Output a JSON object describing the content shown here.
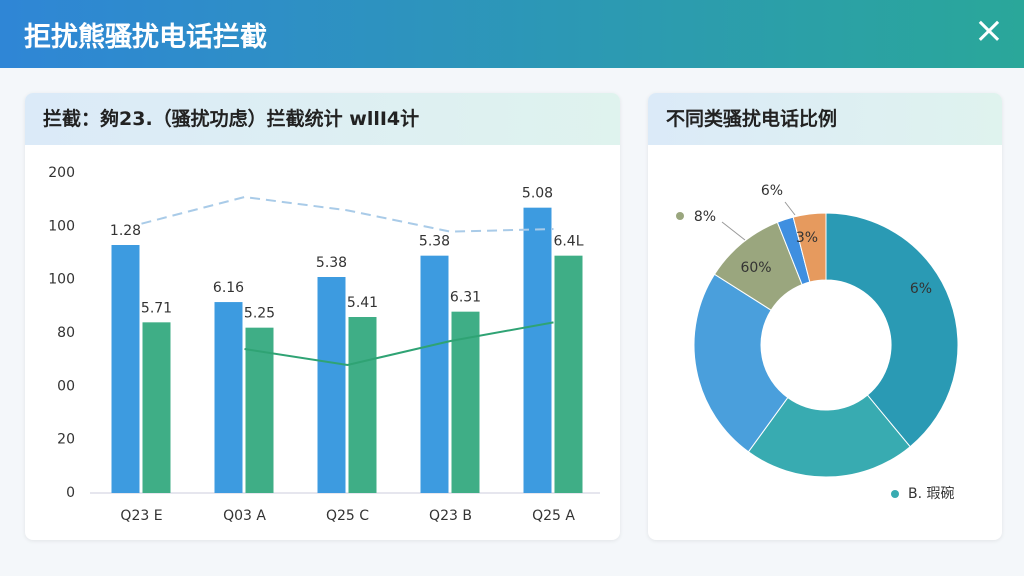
{
  "header": {
    "title": "拒扰熊骚扰电话拦截",
    "close": "×"
  },
  "chart_data": [
    {
      "type": "bar",
      "title": "拦截：夠23.（骚扰功虑）拦截统计 wllI4计",
      "categories": [
        "Q23 E",
        "Q03 A",
        "Q25 C",
        "Q23 B",
        "Q25 A"
      ],
      "series": [
        {
          "color": "#3d9be0",
          "values": [
            93,
            71.6,
            81,
            89,
            107
          ]
        },
        {
          "color": "#3fae86",
          "values": [
            64,
            62,
            66,
            68,
            89
          ]
        }
      ],
      "annotations": [
        [
          "1.28",
          "5.71"
        ],
        [
          "6.16",
          "5.25"
        ],
        [
          "5.38",
          "5.41"
        ],
        [
          "5.38",
          "6.31"
        ],
        [
          "5.08",
          "6.4L"
        ]
      ],
      "lines": [
        {
          "color": "#a9cbe8",
          "dashed": true,
          "values": [
            101,
            111,
            106,
            98,
            99
          ]
        },
        {
          "color": "#2fa374",
          "dashed": false,
          "values": [
            null,
            54,
            48,
            57,
            64
          ]
        }
      ],
      "ylim": [
        0,
        120
      ],
      "yticks": [
        0,
        20,
        {
          "value": 40,
          "label": "00"
        },
        {
          "value": 60,
          "label": "80"
        },
        {
          "value": 80,
          "label": "100"
        },
        100,
        {
          "value": 120,
          "label": "200"
        }
      ]
    },
    {
      "type": "pie",
      "title": "不同类骚扰电话比例",
      "values": [
        39,
        21,
        24,
        10,
        2,
        4
      ],
      "colors": [
        "#2a9ab4",
        "#38abb1",
        "#4a9fdc",
        "#9aa67e",
        "#3f8fe0",
        "#e69a5e"
      ],
      "annotations": [
        "6%",
        "B. 瑕碗",
        "8%",
        "60%",
        "6%",
        "3%"
      ]
    }
  ]
}
